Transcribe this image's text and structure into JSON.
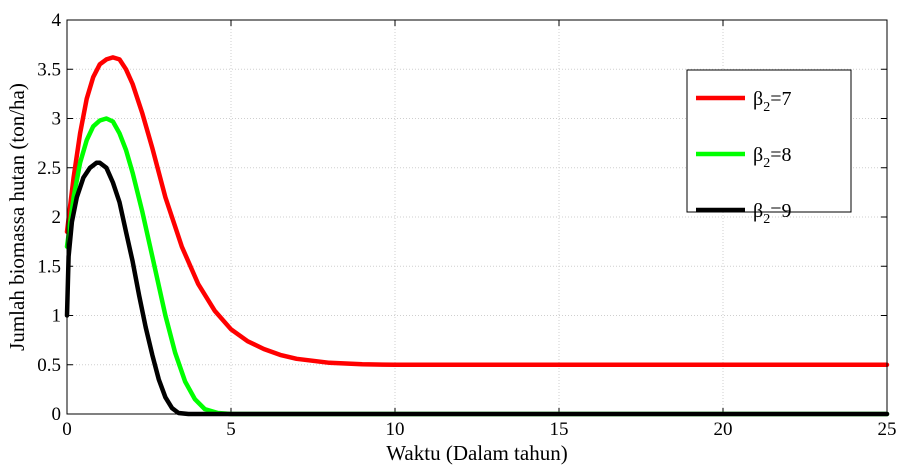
{
  "chart_data": {
    "type": "line",
    "title": "",
    "xlabel": "Waktu (Dalam tahun)",
    "ylabel": "Jumlah biomassa hutan (ton/ha)",
    "xlim": [
      0,
      25
    ],
    "ylim": [
      0,
      4
    ],
    "xticks": [
      "0",
      "5",
      "10",
      "15",
      "20",
      "25"
    ],
    "yticks": [
      "0",
      "0.5",
      "1",
      "1.5",
      "2",
      "2.5",
      "3",
      "3.5",
      "4"
    ],
    "grid": true,
    "legend_position": "top-right",
    "series": [
      {
        "name": "β2=7",
        "legend_symbol": "β",
        "legend_subscript": "2",
        "legend_value": "=7",
        "color": "#ff0000",
        "points": [
          [
            0,
            1.85
          ],
          [
            0.2,
            2.4
          ],
          [
            0.4,
            2.85
          ],
          [
            0.6,
            3.2
          ],
          [
            0.8,
            3.42
          ],
          [
            1.0,
            3.55
          ],
          [
            1.2,
            3.6
          ],
          [
            1.4,
            3.62
          ],
          [
            1.6,
            3.6
          ],
          [
            1.8,
            3.5
          ],
          [
            2.0,
            3.35
          ],
          [
            2.3,
            3.05
          ],
          [
            2.6,
            2.7
          ],
          [
            3.0,
            2.2
          ],
          [
            3.5,
            1.7
          ],
          [
            4.0,
            1.32
          ],
          [
            4.5,
            1.05
          ],
          [
            5.0,
            0.86
          ],
          [
            5.5,
            0.74
          ],
          [
            6.0,
            0.66
          ],
          [
            6.5,
            0.6
          ],
          [
            7.0,
            0.56
          ],
          [
            8.0,
            0.52
          ],
          [
            9.0,
            0.505
          ],
          [
            10.0,
            0.5
          ],
          [
            15.0,
            0.5
          ],
          [
            20.0,
            0.5
          ],
          [
            25.0,
            0.5
          ]
        ]
      },
      {
        "name": "β2=8",
        "legend_symbol": "β",
        "legend_subscript": "2",
        "legend_value": "=8",
        "color": "#00ff00",
        "points": [
          [
            0,
            1.7
          ],
          [
            0.2,
            2.2
          ],
          [
            0.4,
            2.55
          ],
          [
            0.6,
            2.78
          ],
          [
            0.8,
            2.92
          ],
          [
            1.0,
            2.98
          ],
          [
            1.2,
            3.0
          ],
          [
            1.4,
            2.97
          ],
          [
            1.6,
            2.85
          ],
          [
            1.8,
            2.68
          ],
          [
            2.0,
            2.45
          ],
          [
            2.3,
            2.05
          ],
          [
            2.6,
            1.6
          ],
          [
            3.0,
            1.0
          ],
          [
            3.3,
            0.62
          ],
          [
            3.6,
            0.33
          ],
          [
            3.9,
            0.15
          ],
          [
            4.2,
            0.05
          ],
          [
            4.6,
            0.01
          ],
          [
            5.0,
            0.0
          ],
          [
            10.0,
            0.0
          ],
          [
            25.0,
            0.0
          ]
        ]
      },
      {
        "name": "β2=9",
        "legend_symbol": "β",
        "legend_subscript": "2",
        "legend_value": "=9",
        "color": "#000000",
        "points": [
          [
            0,
            1.0
          ],
          [
            0.05,
            1.6
          ],
          [
            0.15,
            1.95
          ],
          [
            0.3,
            2.2
          ],
          [
            0.5,
            2.4
          ],
          [
            0.7,
            2.5
          ],
          [
            0.9,
            2.55
          ],
          [
            1.0,
            2.55
          ],
          [
            1.2,
            2.5
          ],
          [
            1.4,
            2.35
          ],
          [
            1.6,
            2.15
          ],
          [
            1.8,
            1.85
          ],
          [
            2.0,
            1.55
          ],
          [
            2.2,
            1.2
          ],
          [
            2.4,
            0.88
          ],
          [
            2.6,
            0.6
          ],
          [
            2.8,
            0.35
          ],
          [
            3.0,
            0.17
          ],
          [
            3.2,
            0.06
          ],
          [
            3.4,
            0.01
          ],
          [
            3.7,
            0.0
          ],
          [
            10.0,
            0.0
          ],
          [
            25.0,
            0.0
          ]
        ]
      }
    ]
  }
}
